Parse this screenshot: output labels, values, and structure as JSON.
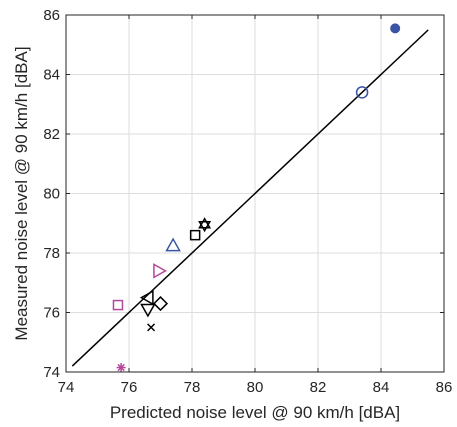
{
  "chart_data": {
    "type": "scatter",
    "xlabel": "Predicted noise level @ 90 km/h [dBA]",
    "ylabel": "Measured noise level @ 90 km/h [dBA]",
    "xlim": [
      74,
      86
    ],
    "ylim": [
      74,
      86
    ],
    "xticks": [
      "74",
      "76",
      "78",
      "80",
      "82",
      "84",
      "86"
    ],
    "yticks": [
      "74",
      "76",
      "78",
      "80",
      "82",
      "84",
      "86"
    ],
    "grid": true,
    "legend": "none",
    "fit_line": {
      "x": [
        74.2,
        85.5
      ],
      "y": [
        74.2,
        85.5
      ]
    },
    "points": [
      {
        "x": 84.45,
        "y": 85.55,
        "marker": "filled-circle",
        "color": "#3A53A4"
      },
      {
        "x": 83.4,
        "y": 83.4,
        "marker": "circle",
        "color": "#3A53A4"
      },
      {
        "x": 78.4,
        "y": 78.95,
        "marker": "hexagram",
        "color": "#000000"
      },
      {
        "x": 78.1,
        "y": 78.6,
        "marker": "square",
        "color": "#000000"
      },
      {
        "x": 77.4,
        "y": 78.25,
        "marker": "triangle-up",
        "color": "#3A53A4"
      },
      {
        "x": 76.95,
        "y": 77.4,
        "marker": "triangle-right",
        "color": "#B5479B"
      },
      {
        "x": 75.65,
        "y": 76.25,
        "marker": "square",
        "color": "#B5479B"
      },
      {
        "x": 76.6,
        "y": 76.5,
        "marker": "triangle-left",
        "color": "#000000"
      },
      {
        "x": 77.0,
        "y": 76.3,
        "marker": "diamond",
        "color": "#000000"
      },
      {
        "x": 76.6,
        "y": 76.1,
        "marker": "triangle-down",
        "color": "#000000"
      },
      {
        "x": 76.7,
        "y": 75.5,
        "marker": "x",
        "color": "#000000"
      },
      {
        "x": 75.75,
        "y": 74.15,
        "marker": "asterisk",
        "color": "#B5479B"
      }
    ]
  }
}
